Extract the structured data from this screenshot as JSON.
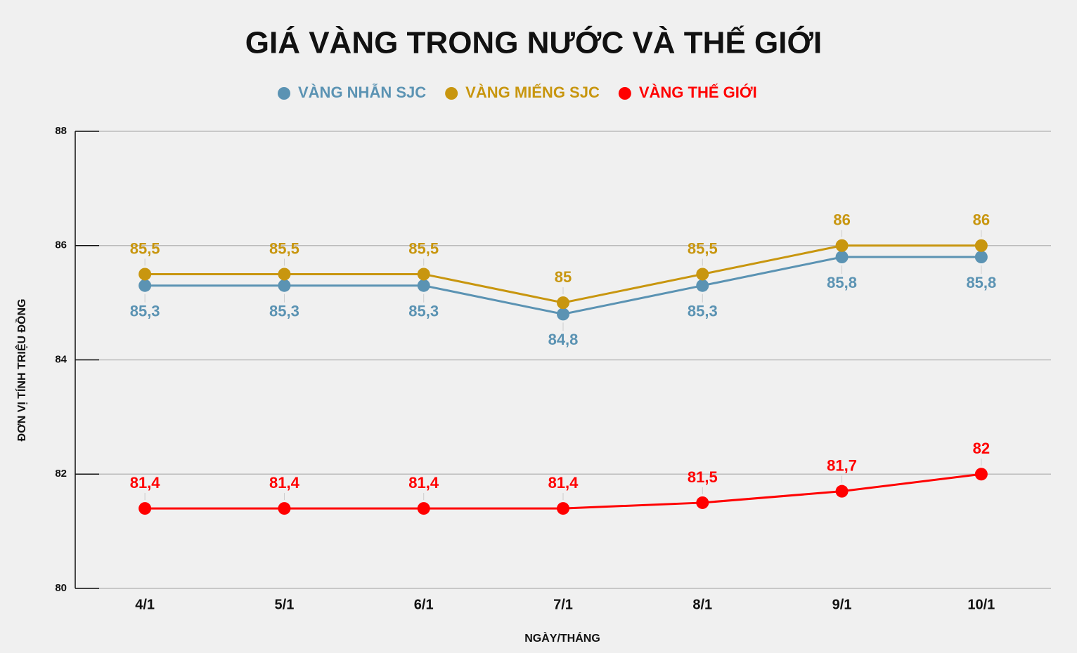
{
  "chart_data": {
    "type": "line",
    "title": "GIÁ VÀNG TRONG NƯỚC VÀ THẾ GIỚI",
    "x_label": "NGÀY/THÁNG",
    "y_label": "ĐƠN VỊ TÍNH TRIỆU ĐỒNG",
    "categories": [
      "4/1",
      "5/1",
      "6/1",
      "7/1",
      "8/1",
      "9/1",
      "10/1"
    ],
    "series": [
      {
        "name": "VÀNG NHẪN SJC",
        "color": "#5b93b3",
        "values": [
          85.3,
          85.3,
          85.3,
          84.8,
          85.3,
          85.8,
          85.8
        ],
        "value_labels": [
          "85,3",
          "85,3",
          "85,3",
          "84,8",
          "85,3",
          "85,8",
          "85,8"
        ]
      },
      {
        "name": "VÀNG MIẾNG SJC",
        "color": "#c8960f",
        "values": [
          85.5,
          85.5,
          85.5,
          85,
          85.5,
          86,
          86
        ],
        "value_labels": [
          "85,5",
          "85,5",
          "85,5",
          "85",
          "85,5",
          "86",
          "86"
        ]
      },
      {
        "name": "VÀNG THẾ GIỚI",
        "color": "#ff0000",
        "values": [
          81.4,
          81.4,
          81.4,
          81.4,
          81.5,
          81.7,
          82
        ],
        "value_labels": [
          "81,4",
          "81,4",
          "81,4",
          "81,4",
          "81,5",
          "81,7",
          "82"
        ]
      }
    ],
    "ylim": [
      80,
      88
    ],
    "yticks": [
      80,
      82,
      84,
      86,
      88
    ],
    "grid": true
  }
}
